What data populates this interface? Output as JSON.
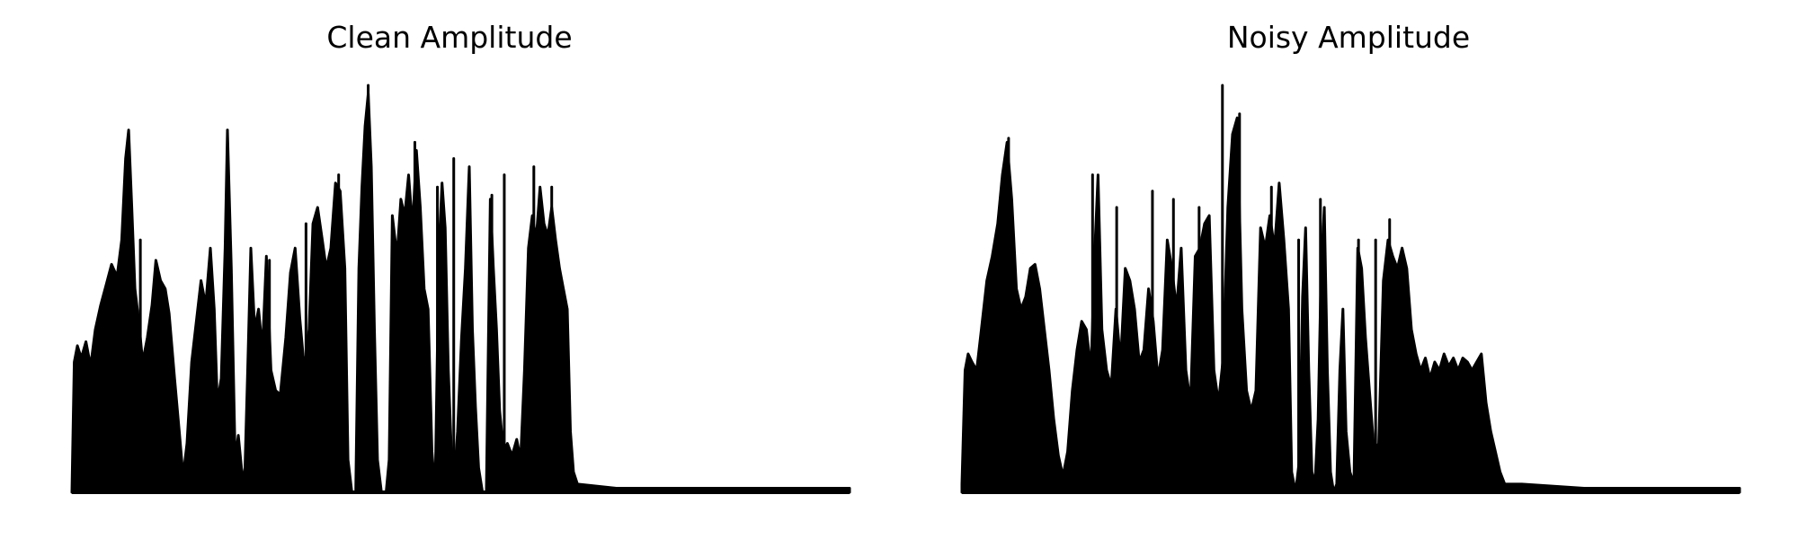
{
  "chart_data": [
    {
      "type": "area",
      "title": "Clean Amplitude",
      "xlabel": "",
      "ylabel": "",
      "axes_visible": false,
      "grid": false,
      "color": "#000000",
      "x_range": [
        0,
        1
      ],
      "y_range": [
        0,
        1
      ],
      "envelope": [
        {
          "x": 0.0,
          "y": 0.0
        },
        {
          "x": 0.003,
          "y": 0.32
        },
        {
          "x": 0.007,
          "y": 0.36
        },
        {
          "x": 0.012,
          "y": 0.33
        },
        {
          "x": 0.018,
          "y": 0.37
        },
        {
          "x": 0.024,
          "y": 0.31
        },
        {
          "x": 0.03,
          "y": 0.4
        },
        {
          "x": 0.037,
          "y": 0.46
        },
        {
          "x": 0.044,
          "y": 0.51
        },
        {
          "x": 0.051,
          "y": 0.56
        },
        {
          "x": 0.058,
          "y": 0.53
        },
        {
          "x": 0.064,
          "y": 0.62
        },
        {
          "x": 0.069,
          "y": 0.82
        },
        {
          "x": 0.073,
          "y": 0.89
        },
        {
          "x": 0.077,
          "y": 0.7
        },
        {
          "x": 0.081,
          "y": 0.5
        },
        {
          "x": 0.086,
          "y": 0.42
        },
        {
          "x": 0.091,
          "y": 0.32
        },
        {
          "x": 0.097,
          "y": 0.38
        },
        {
          "x": 0.103,
          "y": 0.46
        },
        {
          "x": 0.108,
          "y": 0.57
        },
        {
          "x": 0.114,
          "y": 0.52
        },
        {
          "x": 0.12,
          "y": 0.5
        },
        {
          "x": 0.125,
          "y": 0.44
        },
        {
          "x": 0.132,
          "y": 0.28
        },
        {
          "x": 0.138,
          "y": 0.15
        },
        {
          "x": 0.143,
          "y": 0.04
        },
        {
          "x": 0.148,
          "y": 0.12
        },
        {
          "x": 0.154,
          "y": 0.32
        },
        {
          "x": 0.16,
          "y": 0.42
        },
        {
          "x": 0.166,
          "y": 0.52
        },
        {
          "x": 0.172,
          "y": 0.46
        },
        {
          "x": 0.178,
          "y": 0.6
        },
        {
          "x": 0.183,
          "y": 0.45
        },
        {
          "x": 0.187,
          "y": 0.22
        },
        {
          "x": 0.192,
          "y": 0.28
        },
        {
          "x": 0.197,
          "y": 0.6
        },
        {
          "x": 0.2,
          "y": 0.89
        },
        {
          "x": 0.205,
          "y": 0.55
        },
        {
          "x": 0.21,
          "y": 0.08
        },
        {
          "x": 0.214,
          "y": 0.14
        },
        {
          "x": 0.218,
          "y": 0.06
        },
        {
          "x": 0.222,
          "y": 0.02
        },
        {
          "x": 0.226,
          "y": 0.3
        },
        {
          "x": 0.23,
          "y": 0.6
        },
        {
          "x": 0.235,
          "y": 0.4
        },
        {
          "x": 0.24,
          "y": 0.45
        },
        {
          "x": 0.245,
          "y": 0.35
        },
        {
          "x": 0.25,
          "y": 0.58
        },
        {
          "x": 0.256,
          "y": 0.3
        },
        {
          "x": 0.262,
          "y": 0.25
        },
        {
          "x": 0.268,
          "y": 0.24
        },
        {
          "x": 0.275,
          "y": 0.38
        },
        {
          "x": 0.281,
          "y": 0.54
        },
        {
          "x": 0.287,
          "y": 0.6
        },
        {
          "x": 0.293,
          "y": 0.43
        },
        {
          "x": 0.299,
          "y": 0.3
        },
        {
          "x": 0.305,
          "y": 0.4
        },
        {
          "x": 0.31,
          "y": 0.66
        },
        {
          "x": 0.316,
          "y": 0.7
        },
        {
          "x": 0.322,
          "y": 0.62
        },
        {
          "x": 0.327,
          "y": 0.55
        },
        {
          "x": 0.333,
          "y": 0.6
        },
        {
          "x": 0.339,
          "y": 0.76
        },
        {
          "x": 0.345,
          "y": 0.74
        },
        {
          "x": 0.351,
          "y": 0.55
        },
        {
          "x": 0.355,
          "y": 0.08
        },
        {
          "x": 0.36,
          "y": 0.0
        },
        {
          "x": 0.365,
          "y": 0.0
        },
        {
          "x": 0.369,
          "y": 0.55
        },
        {
          "x": 0.373,
          "y": 0.75
        },
        {
          "x": 0.377,
          "y": 0.9
        },
        {
          "x": 0.381,
          "y": 0.98
        },
        {
          "x": 0.385,
          "y": 0.8
        },
        {
          "x": 0.389,
          "y": 0.4
        },
        {
          "x": 0.393,
          "y": 0.08
        },
        {
          "x": 0.398,
          "y": 0.0
        },
        {
          "x": 0.404,
          "y": 0.0
        },
        {
          "x": 0.408,
          "y": 0.08
        },
        {
          "x": 0.412,
          "y": 0.68
        },
        {
          "x": 0.418,
          "y": 0.58
        },
        {
          "x": 0.423,
          "y": 0.72
        },
        {
          "x": 0.428,
          "y": 0.68
        },
        {
          "x": 0.433,
          "y": 0.78
        },
        {
          "x": 0.438,
          "y": 0.65
        },
        {
          "x": 0.443,
          "y": 0.84
        },
        {
          "x": 0.448,
          "y": 0.7
        },
        {
          "x": 0.453,
          "y": 0.5
        },
        {
          "x": 0.458,
          "y": 0.45
        },
        {
          "x": 0.463,
          "y": 0.1
        },
        {
          "x": 0.467,
          "y": 0.0
        },
        {
          "x": 0.472,
          "y": 0.6
        },
        {
          "x": 0.476,
          "y": 0.76
        },
        {
          "x": 0.48,
          "y": 0.65
        },
        {
          "x": 0.484,
          "y": 0.3
        },
        {
          "x": 0.488,
          "y": 0.1
        },
        {
          "x": 0.492,
          "y": 0.04
        },
        {
          "x": 0.496,
          "y": 0.15
        },
        {
          "x": 0.501,
          "y": 0.38
        },
        {
          "x": 0.506,
          "y": 0.55
        },
        {
          "x": 0.511,
          "y": 0.8
        },
        {
          "x": 0.515,
          "y": 0.4
        },
        {
          "x": 0.519,
          "y": 0.21
        },
        {
          "x": 0.523,
          "y": 0.06
        },
        {
          "x": 0.528,
          "y": 0.0
        },
        {
          "x": 0.533,
          "y": 0.0
        },
        {
          "x": 0.538,
          "y": 0.72
        },
        {
          "x": 0.542,
          "y": 0.55
        },
        {
          "x": 0.546,
          "y": 0.4
        },
        {
          "x": 0.55,
          "y": 0.2
        },
        {
          "x": 0.555,
          "y": 0.1
        },
        {
          "x": 0.56,
          "y": 0.12
        },
        {
          "x": 0.566,
          "y": 0.09
        },
        {
          "x": 0.572,
          "y": 0.13
        },
        {
          "x": 0.577,
          "y": 0.08
        },
        {
          "x": 0.582,
          "y": 0.3
        },
        {
          "x": 0.587,
          "y": 0.6
        },
        {
          "x": 0.592,
          "y": 0.68
        },
        {
          "x": 0.597,
          "y": 0.62
        },
        {
          "x": 0.602,
          "y": 0.75
        },
        {
          "x": 0.607,
          "y": 0.66
        },
        {
          "x": 0.612,
          "y": 0.63
        },
        {
          "x": 0.617,
          "y": 0.7
        },
        {
          "x": 0.622,
          "y": 0.62
        },
        {
          "x": 0.627,
          "y": 0.55
        },
        {
          "x": 0.632,
          "y": 0.5
        },
        {
          "x": 0.637,
          "y": 0.45
        },
        {
          "x": 0.641,
          "y": 0.15
        },
        {
          "x": 0.645,
          "y": 0.05
        },
        {
          "x": 0.65,
          "y": 0.02
        },
        {
          "x": 0.7,
          "y": 0.01
        },
        {
          "x": 0.8,
          "y": 0.01
        },
        {
          "x": 0.9,
          "y": 0.01
        },
        {
          "x": 1.0,
          "y": 0.01
        }
      ],
      "spikes": [
        {
          "x": 0.088,
          "y": 0.62
        },
        {
          "x": 0.2,
          "y": 0.89
        },
        {
          "x": 0.254,
          "y": 0.57
        },
        {
          "x": 0.301,
          "y": 0.66
        },
        {
          "x": 0.343,
          "y": 0.78
        },
        {
          "x": 0.381,
          "y": 1.0
        },
        {
          "x": 0.441,
          "y": 0.86
        },
        {
          "x": 0.47,
          "y": 0.75
        },
        {
          "x": 0.491,
          "y": 0.82
        },
        {
          "x": 0.54,
          "y": 0.73
        },
        {
          "x": 0.556,
          "y": 0.78
        },
        {
          "x": 0.594,
          "y": 0.8
        },
        {
          "x": 0.617,
          "y": 0.75
        }
      ]
    },
    {
      "type": "area",
      "title": "Noisy Amplitude",
      "xlabel": "",
      "ylabel": "",
      "axes_visible": false,
      "grid": false,
      "color": "#000000",
      "x_range": [
        0,
        1
      ],
      "y_range": [
        0,
        1
      ],
      "envelope": [
        {
          "x": 0.0,
          "y": 0.02
        },
        {
          "x": 0.004,
          "y": 0.3
        },
        {
          "x": 0.008,
          "y": 0.34
        },
        {
          "x": 0.013,
          "y": 0.32
        },
        {
          "x": 0.019,
          "y": 0.3
        },
        {
          "x": 0.025,
          "y": 0.4
        },
        {
          "x": 0.032,
          "y": 0.52
        },
        {
          "x": 0.039,
          "y": 0.58
        },
        {
          "x": 0.046,
          "y": 0.66
        },
        {
          "x": 0.052,
          "y": 0.78
        },
        {
          "x": 0.058,
          "y": 0.86
        },
        {
          "x": 0.064,
          "y": 0.72
        },
        {
          "x": 0.07,
          "y": 0.5
        },
        {
          "x": 0.076,
          "y": 0.45
        },
        {
          "x": 0.082,
          "y": 0.48
        },
        {
          "x": 0.088,
          "y": 0.55
        },
        {
          "x": 0.094,
          "y": 0.56
        },
        {
          "x": 0.1,
          "y": 0.5
        },
        {
          "x": 0.106,
          "y": 0.4
        },
        {
          "x": 0.112,
          "y": 0.3
        },
        {
          "x": 0.118,
          "y": 0.18
        },
        {
          "x": 0.124,
          "y": 0.09
        },
        {
          "x": 0.13,
          "y": 0.04
        },
        {
          "x": 0.136,
          "y": 0.1
        },
        {
          "x": 0.142,
          "y": 0.25
        },
        {
          "x": 0.148,
          "y": 0.35
        },
        {
          "x": 0.154,
          "y": 0.42
        },
        {
          "x": 0.16,
          "y": 0.4
        },
        {
          "x": 0.166,
          "y": 0.3
        },
        {
          "x": 0.171,
          "y": 0.6
        },
        {
          "x": 0.175,
          "y": 0.78
        },
        {
          "x": 0.18,
          "y": 0.4
        },
        {
          "x": 0.186,
          "y": 0.3
        },
        {
          "x": 0.192,
          "y": 0.26
        },
        {
          "x": 0.198,
          "y": 0.45
        },
        {
          "x": 0.204,
          "y": 0.32
        },
        {
          "x": 0.21,
          "y": 0.55
        },
        {
          "x": 0.216,
          "y": 0.52
        },
        {
          "x": 0.222,
          "y": 0.45
        },
        {
          "x": 0.228,
          "y": 0.32
        },
        {
          "x": 0.234,
          "y": 0.35
        },
        {
          "x": 0.24,
          "y": 0.5
        },
        {
          "x": 0.246,
          "y": 0.42
        },
        {
          "x": 0.252,
          "y": 0.28
        },
        {
          "x": 0.258,
          "y": 0.35
        },
        {
          "x": 0.264,
          "y": 0.62
        },
        {
          "x": 0.27,
          "y": 0.55
        },
        {
          "x": 0.276,
          "y": 0.45
        },
        {
          "x": 0.282,
          "y": 0.6
        },
        {
          "x": 0.288,
          "y": 0.3
        },
        {
          "x": 0.294,
          "y": 0.22
        },
        {
          "x": 0.3,
          "y": 0.58
        },
        {
          "x": 0.306,
          "y": 0.6
        },
        {
          "x": 0.312,
          "y": 0.66
        },
        {
          "x": 0.318,
          "y": 0.68
        },
        {
          "x": 0.324,
          "y": 0.3
        },
        {
          "x": 0.33,
          "y": 0.22
        },
        {
          "x": 0.336,
          "y": 0.33
        },
        {
          "x": 0.342,
          "y": 0.7
        },
        {
          "x": 0.348,
          "y": 0.88
        },
        {
          "x": 0.354,
          "y": 0.92
        },
        {
          "x": 0.36,
          "y": 0.45
        },
        {
          "x": 0.366,
          "y": 0.25
        },
        {
          "x": 0.372,
          "y": 0.2
        },
        {
          "x": 0.378,
          "y": 0.25
        },
        {
          "x": 0.384,
          "y": 0.65
        },
        {
          "x": 0.39,
          "y": 0.6
        },
        {
          "x": 0.396,
          "y": 0.68
        },
        {
          "x": 0.402,
          "y": 0.6
        },
        {
          "x": 0.408,
          "y": 0.76
        },
        {
          "x": 0.414,
          "y": 0.62
        },
        {
          "x": 0.42,
          "y": 0.45
        },
        {
          "x": 0.424,
          "y": 0.05
        },
        {
          "x": 0.429,
          "y": 0.0
        },
        {
          "x": 0.434,
          "y": 0.08
        },
        {
          "x": 0.438,
          "y": 0.48
        },
        {
          "x": 0.442,
          "y": 0.65
        },
        {
          "x": 0.446,
          "y": 0.3
        },
        {
          "x": 0.45,
          "y": 0.05
        },
        {
          "x": 0.454,
          "y": 0.02
        },
        {
          "x": 0.458,
          "y": 0.18
        },
        {
          "x": 0.462,
          "y": 0.55
        },
        {
          "x": 0.466,
          "y": 0.7
        },
        {
          "x": 0.47,
          "y": 0.3
        },
        {
          "x": 0.474,
          "y": 0.05
        },
        {
          "x": 0.478,
          "y": 0.0
        },
        {
          "x": 0.482,
          "y": 0.02
        },
        {
          "x": 0.486,
          "y": 0.3
        },
        {
          "x": 0.49,
          "y": 0.45
        },
        {
          "x": 0.494,
          "y": 0.15
        },
        {
          "x": 0.499,
          "y": 0.05
        },
        {
          "x": 0.504,
          "y": 0.02
        },
        {
          "x": 0.509,
          "y": 0.6
        },
        {
          "x": 0.514,
          "y": 0.55
        },
        {
          "x": 0.519,
          "y": 0.38
        },
        {
          "x": 0.524,
          "y": 0.25
        },
        {
          "x": 0.53,
          "y": 0.1
        },
        {
          "x": 0.536,
          "y": 0.12
        },
        {
          "x": 0.542,
          "y": 0.52
        },
        {
          "x": 0.548,
          "y": 0.62
        },
        {
          "x": 0.554,
          "y": 0.58
        },
        {
          "x": 0.56,
          "y": 0.55
        },
        {
          "x": 0.566,
          "y": 0.6
        },
        {
          "x": 0.572,
          "y": 0.55
        },
        {
          "x": 0.578,
          "y": 0.4
        },
        {
          "x": 0.584,
          "y": 0.34
        },
        {
          "x": 0.59,
          "y": 0.3
        },
        {
          "x": 0.596,
          "y": 0.33
        },
        {
          "x": 0.602,
          "y": 0.28
        },
        {
          "x": 0.608,
          "y": 0.32
        },
        {
          "x": 0.614,
          "y": 0.3
        },
        {
          "x": 0.62,
          "y": 0.34
        },
        {
          "x": 0.626,
          "y": 0.31
        },
        {
          "x": 0.632,
          "y": 0.33
        },
        {
          "x": 0.638,
          "y": 0.3
        },
        {
          "x": 0.644,
          "y": 0.33
        },
        {
          "x": 0.65,
          "y": 0.32
        },
        {
          "x": 0.656,
          "y": 0.3
        },
        {
          "x": 0.662,
          "y": 0.32
        },
        {
          "x": 0.668,
          "y": 0.34
        },
        {
          "x": 0.674,
          "y": 0.22
        },
        {
          "x": 0.68,
          "y": 0.15
        },
        {
          "x": 0.686,
          "y": 0.1
        },
        {
          "x": 0.692,
          "y": 0.05
        },
        {
          "x": 0.698,
          "y": 0.02
        },
        {
          "x": 0.72,
          "y": 0.02
        },
        {
          "x": 0.8,
          "y": 0.01
        },
        {
          "x": 0.9,
          "y": 0.01
        },
        {
          "x": 1.0,
          "y": 0.01
        }
      ],
      "spikes": [
        {
          "x": 0.06,
          "y": 0.87
        },
        {
          "x": 0.168,
          "y": 0.78
        },
        {
          "x": 0.199,
          "y": 0.7
        },
        {
          "x": 0.245,
          "y": 0.74
        },
        {
          "x": 0.272,
          "y": 0.72
        },
        {
          "x": 0.305,
          "y": 0.7
        },
        {
          "x": 0.335,
          "y": 1.0
        },
        {
          "x": 0.357,
          "y": 0.93
        },
        {
          "x": 0.398,
          "y": 0.75
        },
        {
          "x": 0.433,
          "y": 0.62
        },
        {
          "x": 0.461,
          "y": 0.72
        },
        {
          "x": 0.51,
          "y": 0.62
        },
        {
          "x": 0.532,
          "y": 0.62
        },
        {
          "x": 0.55,
          "y": 0.67
        }
      ]
    }
  ]
}
